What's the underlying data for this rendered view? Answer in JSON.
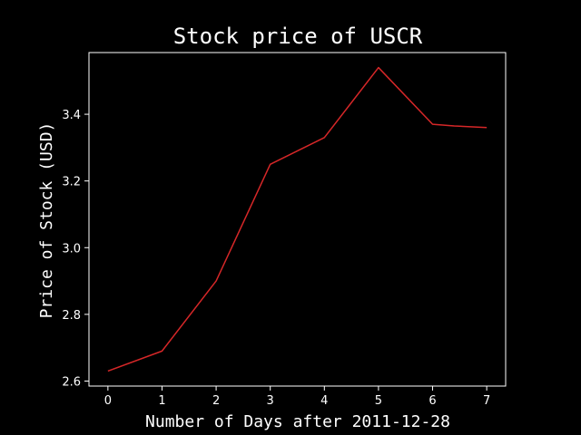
{
  "chart_data": {
    "type": "line",
    "title": "Stock price of USCR",
    "xlabel": "Number of Days after 2011-12-28",
    "ylabel": "Price of Stock (USD)",
    "x": [
      0,
      1,
      2,
      3,
      4,
      5,
      6,
      6.4,
      7
    ],
    "series": [
      {
        "values": [
          2.63,
          2.69,
          2.9,
          3.25,
          3.33,
          3.54,
          3.37,
          3.365,
          3.36
        ]
      }
    ],
    "xlim": [
      -0.35,
      7.35
    ],
    "ylim": [
      2.585,
      3.585
    ],
    "xticks": [
      0,
      1,
      2,
      3,
      4,
      5,
      6,
      7
    ],
    "xtick_labels": [
      "0",
      "1",
      "2",
      "3",
      "4",
      "5",
      "6",
      "7"
    ],
    "yticks": [
      2.6,
      2.8,
      3.0,
      3.2,
      3.4
    ],
    "ytick_labels": [
      "2.6",
      "2.8",
      "3.0",
      "3.2",
      "3.4"
    ],
    "line_color": "#d62728",
    "background_color": "#000000",
    "foreground_color": "#ffffff",
    "grid": false,
    "legend": false
  }
}
